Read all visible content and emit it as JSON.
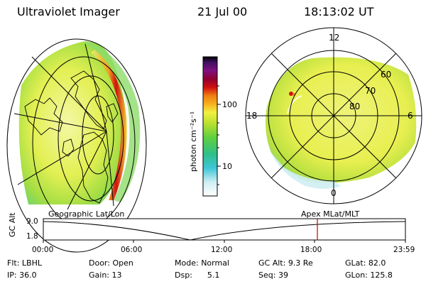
{
  "header": {
    "instrument": "Ultraviolet Imager",
    "date": "21 Jul 00",
    "time": "18:13:02 UT"
  },
  "colorbar": {
    "unit_label": "photon cm⁻²s⁻¹",
    "ticks": [
      "100",
      "10"
    ]
  },
  "left_map": {
    "caption": "Geographic Lat/Lon"
  },
  "right_map": {
    "caption": "Apex MLat/MLT",
    "mlt_labels": [
      "12",
      "18",
      "6",
      "0"
    ],
    "lat_labels": [
      "60",
      "70",
      "80"
    ]
  },
  "timeline": {
    "ylabel": "GC Alt",
    "yticks": [
      "9.0",
      "1.8"
    ],
    "xticks": [
      "00:00",
      "06:00",
      "12:00",
      "18:00",
      "23:59"
    ],
    "marker_color": "#cc0000"
  },
  "params": {
    "flt_label": "Flt:",
    "flt_value": "LBHL",
    "ip_label": "IP:",
    "ip_value": "36.0",
    "door_label": "Door:",
    "door_value": "Open",
    "gain_label": "Gain:",
    "gain_value": "13",
    "mode_label": "Mode:",
    "mode_value": "Normal",
    "dsp_label": "Dsp:",
    "dsp_value": "5.1",
    "gcalt_label": "GC Alt:",
    "gcalt_value": "9.3 Re",
    "seq_label": "Seq:",
    "seq_value": "39",
    "glat_label": "GLat:",
    "glat_value": "82.0",
    "glon_label": "GLon:",
    "glon_value": "125.8"
  }
}
